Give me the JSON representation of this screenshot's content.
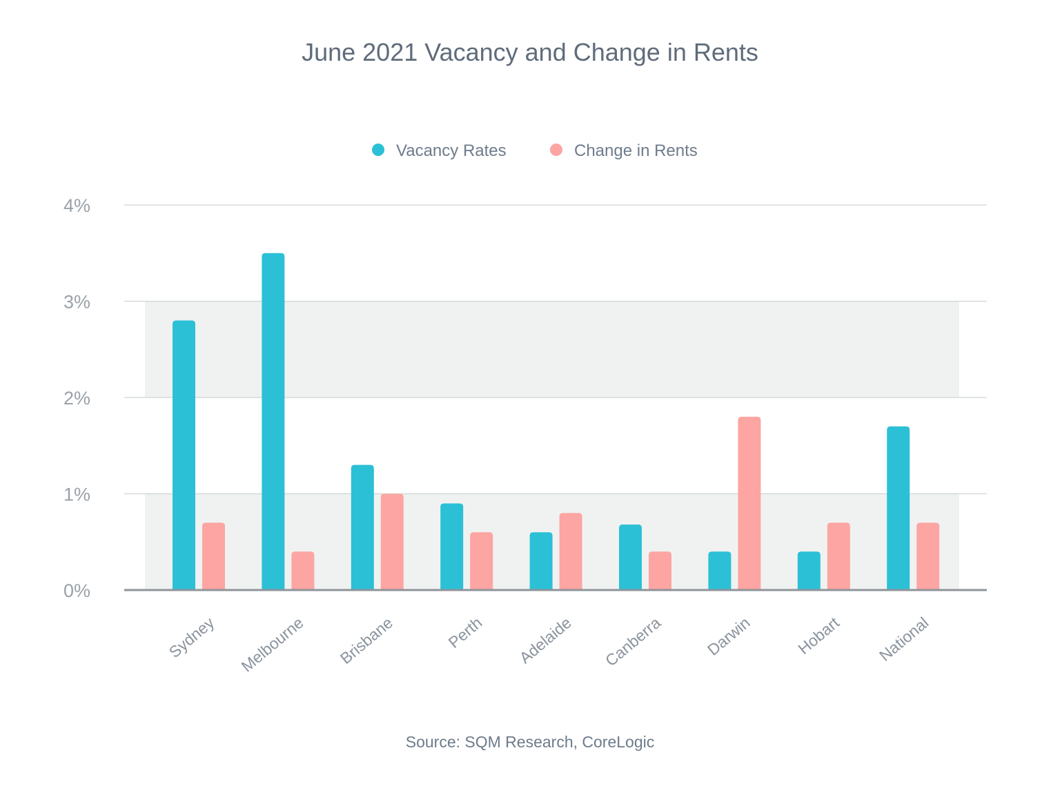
{
  "chart_data": {
    "type": "bar",
    "title": "June 2021 Vacancy and Change in Rents",
    "source": "Source: SQM Research, CoreLogic",
    "categories": [
      "Sydney",
      "Melbourne",
      "Brisbane",
      "Perth",
      "Adelaide",
      "Canberra",
      "Darwin",
      "Hobart",
      "National"
    ],
    "series": [
      {
        "name": "Vacancy Rates",
        "color": "#2bc0d6",
        "values": [
          2.8,
          3.5,
          1.3,
          0.9,
          0.6,
          0.68,
          0.4,
          0.4,
          1.7
        ]
      },
      {
        "name": "Change in Rents",
        "color": "#fca5a2",
        "values": [
          0.7,
          0.4,
          1.0,
          0.6,
          0.8,
          0.4,
          1.8,
          0.7,
          0.7
        ]
      }
    ],
    "ylim": [
      0,
      4
    ],
    "yticks": [
      0,
      1,
      2,
      3,
      4
    ],
    "ytick_labels": [
      "0%",
      "1%",
      "2%",
      "3%",
      "4%"
    ],
    "grid": true,
    "shaded_band_color": "#f0f2f1",
    "legend_position": "top-center"
  }
}
